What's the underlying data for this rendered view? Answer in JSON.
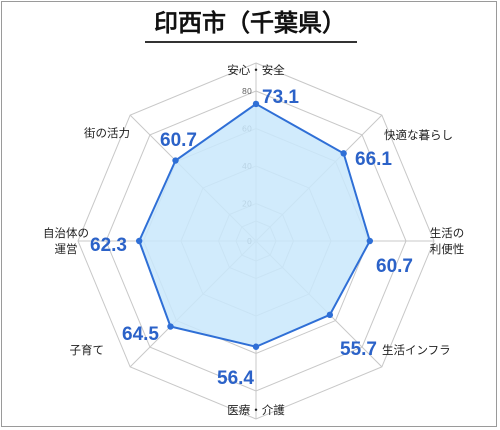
{
  "title": "印西市（千葉県）",
  "chart_data": {
    "type": "radar",
    "title": "印西市（千葉県）",
    "axis_ticks": [
      "0",
      "20",
      "40",
      "60",
      "80"
    ],
    "rmax": 80,
    "categories": [
      {
        "lines": [
          "安心・安全"
        ]
      },
      {
        "lines": [
          "快適な暮らし"
        ]
      },
      {
        "lines": [
          "生活の",
          "利便性"
        ]
      },
      {
        "lines": [
          "生活インフラ"
        ]
      },
      {
        "lines": [
          "医療・介護"
        ]
      },
      {
        "lines": [
          "子育て"
        ]
      },
      {
        "lines": [
          "自治体の",
          "運営"
        ]
      },
      {
        "lines": [
          "街の活力"
        ]
      }
    ],
    "values": [
      73.1,
      66.1,
      60.7,
      55.7,
      56.4,
      64.5,
      62.3,
      60.7
    ],
    "value_labels": [
      "73.1",
      "66.1",
      "60.7",
      "55.7",
      "56.4",
      "64.5",
      "62.3",
      "60.7"
    ],
    "colors": {
      "line": "#2f6fd6",
      "fill": "#c9e8fb",
      "grid": "#c8c8c8",
      "value_text": "#2b62c8"
    }
  }
}
